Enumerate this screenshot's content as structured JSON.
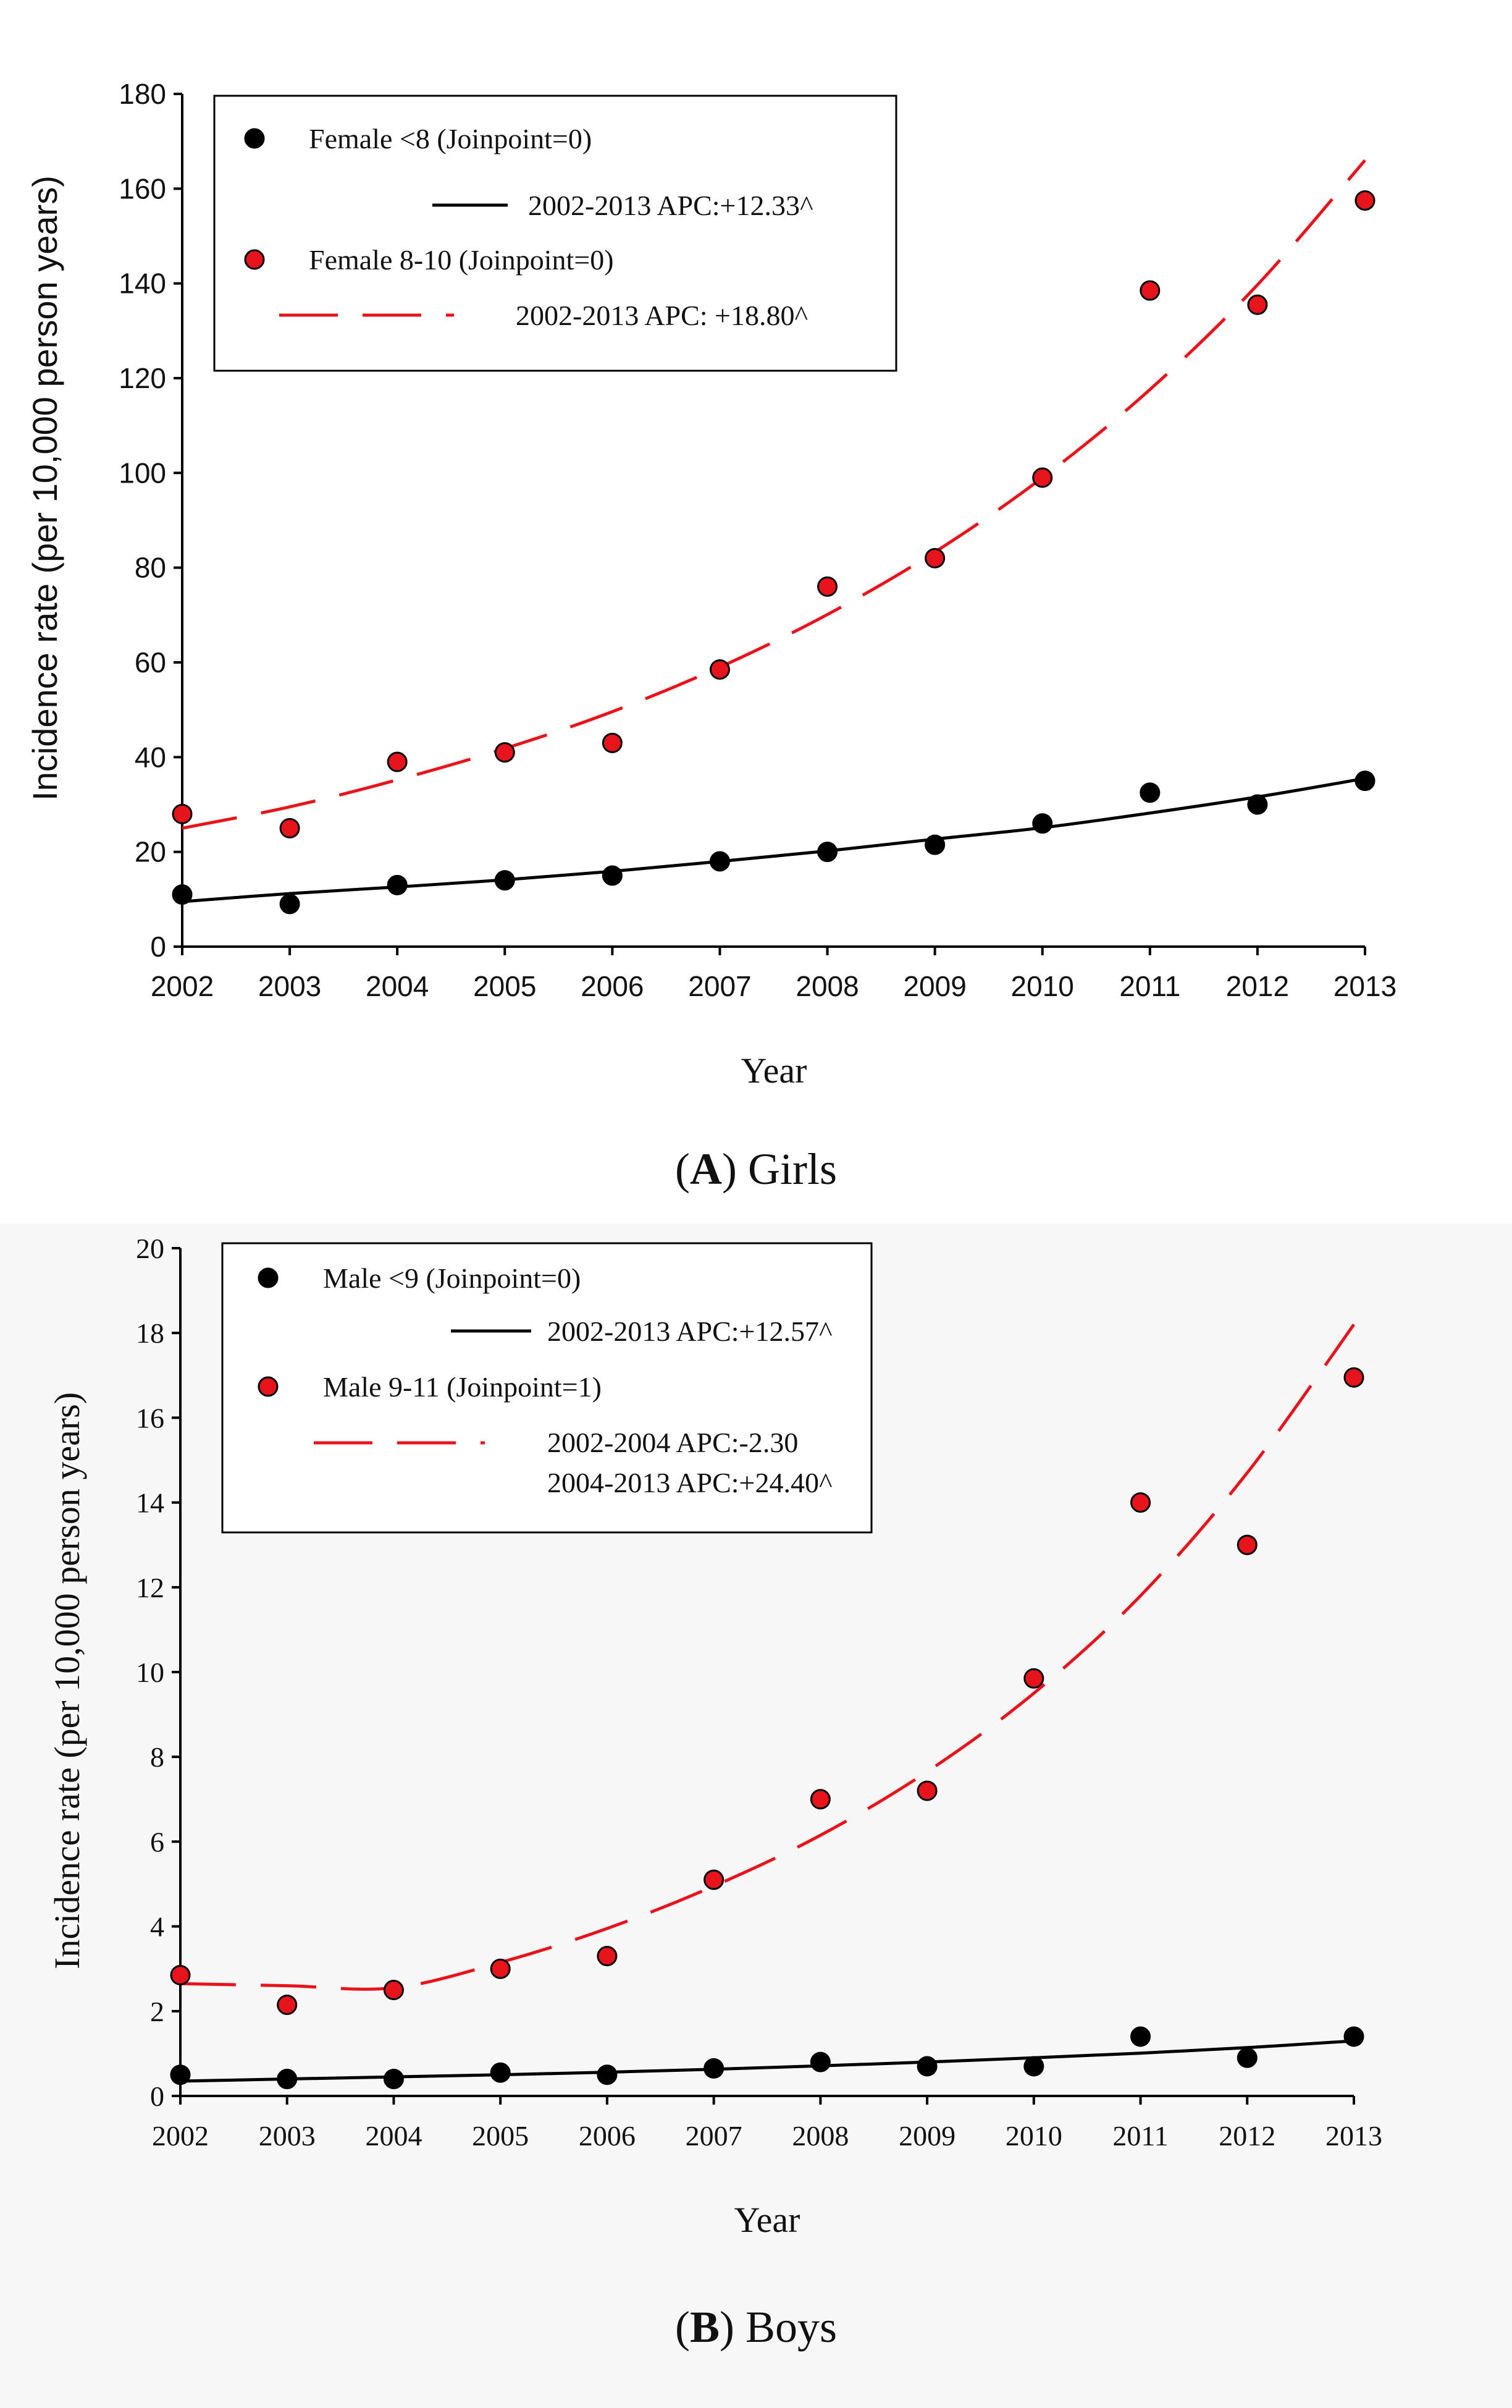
{
  "chart_data": [
    {
      "type": "scatter",
      "panel_letter": "A",
      "caption": "Girls",
      "xlabel": "Year",
      "ylabel": "Incidence rate (per 10,000 person years)",
      "categories": [
        "2002",
        "2003",
        "2004",
        "2005",
        "2006",
        "2007",
        "2008",
        "2009",
        "2010",
        "2011",
        "2012",
        "2013"
      ],
      "ylim": [
        0,
        180
      ],
      "yticks": [
        0,
        20,
        40,
        60,
        80,
        100,
        120,
        140,
        160,
        180
      ],
      "series": [
        {
          "name": "Female <8 (Joinpoint=0)",
          "marker_color": "#000000",
          "values": [
            11,
            9,
            13,
            14,
            15,
            18,
            20,
            21.5,
            26,
            32.5,
            30,
            35
          ],
          "trend_label": "2002-2013 APC:+12.33^",
          "trend_style": "solid",
          "trend_color": "#000000",
          "trend_values": [
            9.5,
            11.2,
            12.6,
            14.1,
            15.9,
            18.0,
            20.2,
            22.7,
            25.1,
            28.2,
            31.6,
            35.5
          ]
        },
        {
          "name": "Female 8-10 (Joinpoint=0)",
          "marker_color": "#e8141b",
          "values": [
            28,
            25,
            39,
            41,
            43,
            58.5,
            76,
            82,
            99,
            138.5,
            135.5,
            157.5
          ],
          "trend_label": "2002-2013 APC: +18.80^",
          "trend_style": "dashed",
          "trend_color": "#e8141b",
          "trend_values": [
            25,
            29.5,
            35.2,
            41.8,
            49.6,
            59,
            70.1,
            83.3,
            99,
            117.6,
            139.7,
            166
          ]
        }
      ]
    },
    {
      "type": "scatter",
      "panel_letter": "B",
      "caption": "Boys",
      "xlabel": "Year",
      "ylabel": "Incidence rate (per 10,000 person years)",
      "categories": [
        "2002",
        "2003",
        "2004",
        "2005",
        "2006",
        "2007",
        "2008",
        "2009",
        "2010",
        "2011",
        "2012",
        "2013"
      ],
      "ylim": [
        0,
        20
      ],
      "yticks": [
        0,
        2,
        4,
        6,
        8,
        10,
        12,
        14,
        16,
        18,
        20
      ],
      "series": [
        {
          "name": "Male <9 (Joinpoint=0)",
          "marker_color": "#000000",
          "values": [
            0.5,
            0.4,
            0.4,
            0.55,
            0.5,
            0.65,
            0.8,
            0.7,
            0.7,
            1.4,
            0.9,
            1.4
          ],
          "trend_label": "2002-2013 APC:+12.57^",
          "trend_style": "solid",
          "trend_color": "#000000",
          "trend_values": [
            0.35,
            0.4,
            0.45,
            0.5,
            0.56,
            0.63,
            0.71,
            0.8,
            0.9,
            1.01,
            1.14,
            1.3
          ]
        },
        {
          "name": "Male 9-11 (Joinpoint=1)",
          "marker_color": "#e8141b",
          "values": [
            2.85,
            2.15,
            2.5,
            3.0,
            3.3,
            5.1,
            7.0,
            7.2,
            9.85,
            14.0,
            13.0,
            16.95
          ],
          "trend_label": "2002-2004 APC:-2.30",
          "trend_label_2": "2004-2013 APC:+24.40^",
          "trend_style": "dashed",
          "trend_color": "#e8141b",
          "trend_values": [
            2.65,
            2.6,
            2.55,
            3.15,
            3.95,
            4.95,
            6.15,
            7.65,
            9.5,
            11.8,
            14.7,
            18.2
          ]
        }
      ]
    }
  ]
}
